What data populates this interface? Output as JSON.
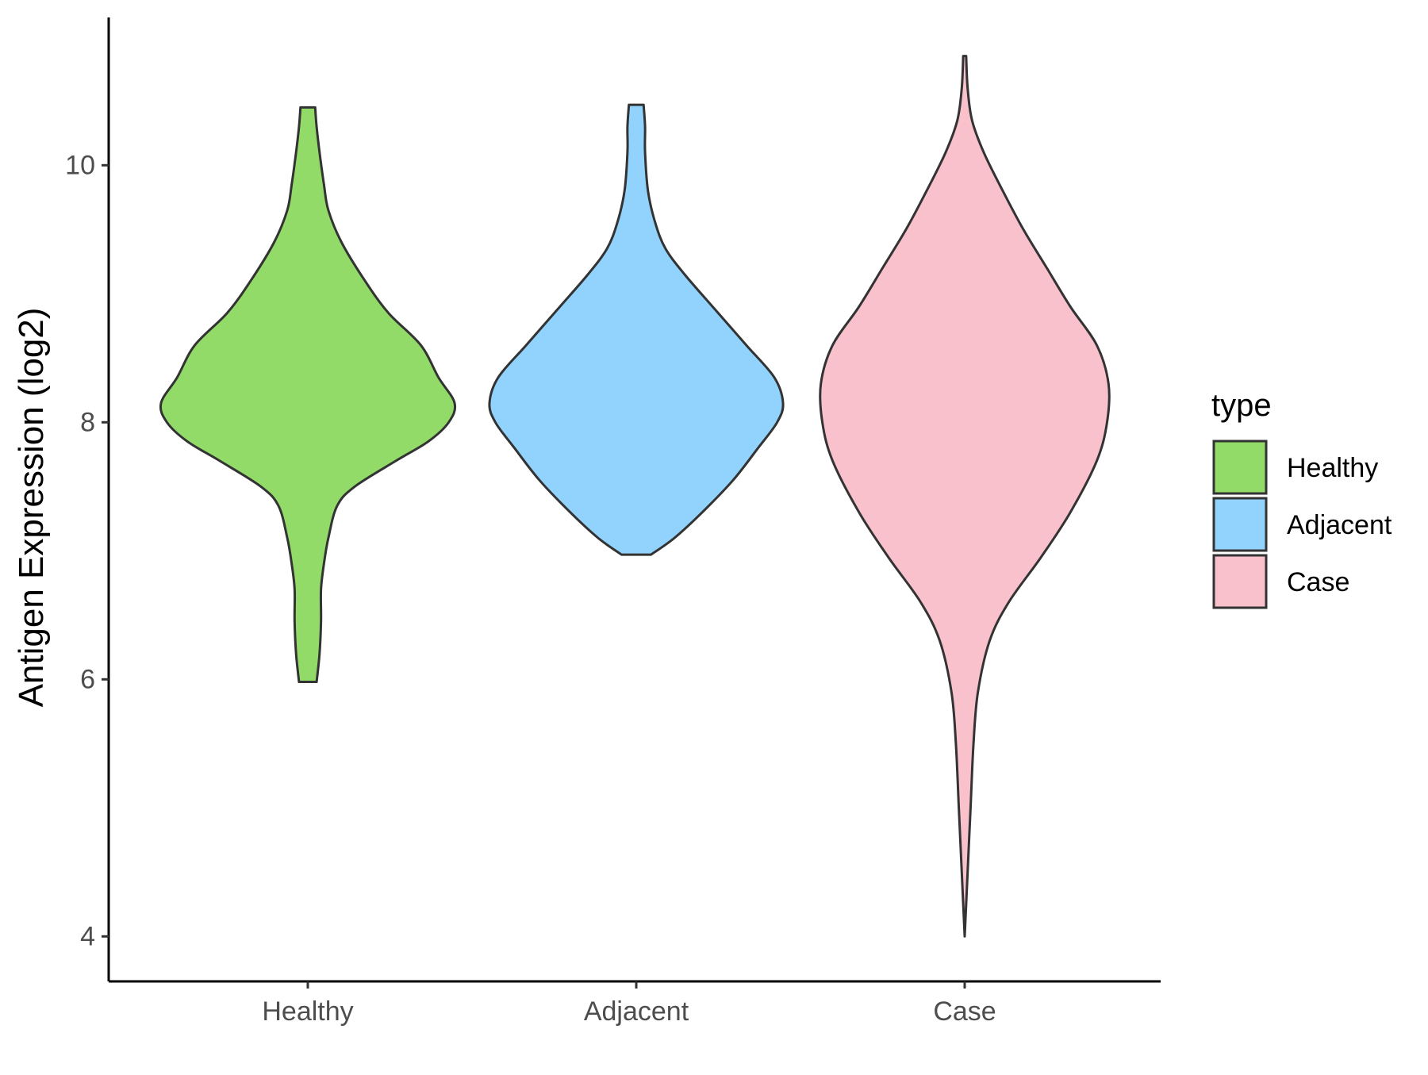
{
  "chart_data": {
    "type": "violin",
    "xlabel": "",
    "ylabel": "Antigen Expression (log2)",
    "ylim": [
      3.65,
      11.15
    ],
    "yticks": [
      4,
      6,
      8,
      10
    ],
    "categories": [
      "Healthy",
      "Adjacent",
      "Case"
    ],
    "legend": {
      "title": "type",
      "position": "right",
      "entries": [
        "Healthy",
        "Adjacent",
        "Case"
      ]
    },
    "colors": {
      "Healthy": "#93DB69",
      "Adjacent": "#92D3FD",
      "Case": "#F8C1CC",
      "outline": "#333333"
    },
    "grid": false,
    "series": [
      {
        "name": "Healthy",
        "min": 5.98,
        "max": 10.45,
        "density": [
          [
            5.98,
            0.06
          ],
          [
            6.2,
            0.08
          ],
          [
            6.45,
            0.09
          ],
          [
            6.7,
            0.09
          ],
          [
            6.9,
            0.11
          ],
          [
            7.1,
            0.14
          ],
          [
            7.35,
            0.2
          ],
          [
            7.5,
            0.32
          ],
          [
            7.7,
            0.6
          ],
          [
            7.85,
            0.82
          ],
          [
            8.0,
            0.96
          ],
          [
            8.15,
            1.0
          ],
          [
            8.35,
            0.89
          ],
          [
            8.6,
            0.77
          ],
          [
            8.85,
            0.55
          ],
          [
            9.1,
            0.39
          ],
          [
            9.4,
            0.23
          ],
          [
            9.65,
            0.14
          ],
          [
            9.85,
            0.11
          ],
          [
            10.1,
            0.08
          ],
          [
            10.3,
            0.06
          ],
          [
            10.45,
            0.05
          ]
        ]
      },
      {
        "name": "Adjacent",
        "min": 6.97,
        "max": 10.47,
        "density": [
          [
            6.97,
            0.1
          ],
          [
            7.1,
            0.26
          ],
          [
            7.3,
            0.45
          ],
          [
            7.55,
            0.66
          ],
          [
            7.8,
            0.83
          ],
          [
            8.0,
            0.96
          ],
          [
            8.15,
            1.0
          ],
          [
            8.35,
            0.94
          ],
          [
            8.6,
            0.75
          ],
          [
            8.9,
            0.52
          ],
          [
            9.15,
            0.33
          ],
          [
            9.35,
            0.2
          ],
          [
            9.55,
            0.13
          ],
          [
            9.8,
            0.08
          ],
          [
            10.1,
            0.06
          ],
          [
            10.3,
            0.06
          ],
          [
            10.47,
            0.05
          ]
        ]
      },
      {
        "name": "Case",
        "min": 4.0,
        "max": 10.85,
        "density": [
          [
            4.0,
            0.0
          ],
          [
            4.5,
            0.02
          ],
          [
            5.0,
            0.04
          ],
          [
            5.5,
            0.06
          ],
          [
            5.9,
            0.09
          ],
          [
            6.3,
            0.17
          ],
          [
            6.6,
            0.3
          ],
          [
            6.95,
            0.52
          ],
          [
            7.3,
            0.72
          ],
          [
            7.7,
            0.9
          ],
          [
            8.0,
            0.97
          ],
          [
            8.3,
            0.98
          ],
          [
            8.6,
            0.9
          ],
          [
            8.9,
            0.72
          ],
          [
            9.2,
            0.56
          ],
          [
            9.5,
            0.4
          ],
          [
            9.8,
            0.26
          ],
          [
            10.1,
            0.13
          ],
          [
            10.35,
            0.05
          ],
          [
            10.6,
            0.02
          ],
          [
            10.85,
            0.01
          ]
        ]
      }
    ]
  }
}
